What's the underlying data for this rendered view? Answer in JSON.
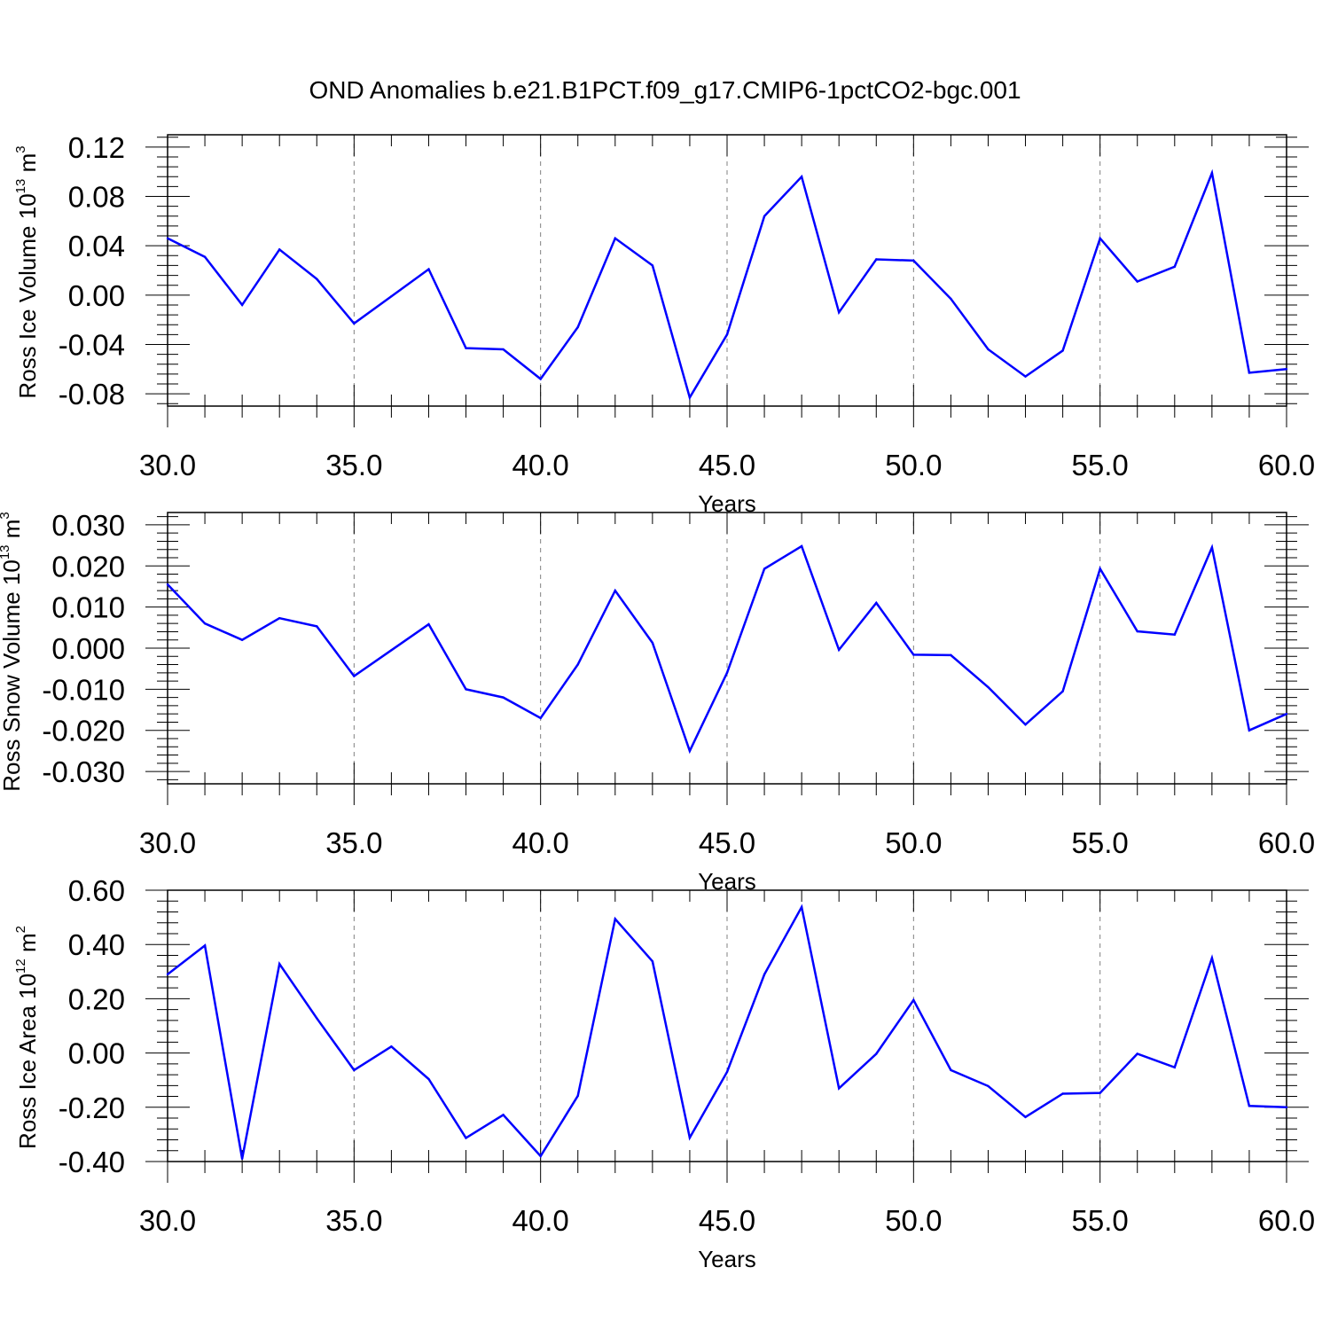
{
  "title": "OND Anomalies b.e21.B1PCT.f09_g17.CMIP6-1pctCO2-bgc.001",
  "colors": {
    "line": "#0000ff",
    "axis": "#000000",
    "grid": "#808080"
  },
  "chart_data": [
    {
      "type": "line",
      "ylabel": {
        "text": "Ross Ice Volume 10",
        "sup": "13",
        "unit": " m",
        "unit_sup": "3"
      },
      "xlabel": "Years",
      "xlim": [
        30,
        60
      ],
      "ylim": [
        -0.09,
        0.13
      ],
      "xticks": [
        "30.0",
        "35.0",
        "40.0",
        "45.0",
        "50.0",
        "55.0",
        "60.0"
      ],
      "yticks": [
        "0.12",
        "0.08",
        "0.04",
        "0.00",
        "-0.04",
        "-0.08"
      ],
      "ytick_values": [
        0.12,
        0.08,
        0.04,
        0.0,
        -0.04,
        -0.08
      ],
      "x": [
        30,
        31,
        32,
        33,
        34,
        35,
        36,
        37,
        38,
        39,
        40,
        41,
        42,
        43,
        44,
        45,
        46,
        47,
        48,
        49,
        50,
        51,
        52,
        53,
        54,
        55,
        56,
        57,
        58,
        59,
        60
      ],
      "series": [
        {
          "values": [
            0.046,
            0.031,
            -0.008,
            0.037,
            0.013,
            -0.023,
            -0.001,
            0.021,
            -0.043,
            -0.044,
            -0.068,
            -0.026,
            0.046,
            0.024,
            -0.083,
            -0.032,
            0.064,
            0.096,
            -0.014,
            0.029,
            0.028,
            -0.003,
            -0.044,
            -0.066,
            -0.045,
            0.046,
            0.011,
            0.023,
            0.099,
            -0.063,
            -0.06
          ]
        }
      ],
      "grid": "dashed vertical at major x ticks"
    },
    {
      "type": "line",
      "ylabel": {
        "text": "Ross Snow Volume 10",
        "sup": "13",
        "unit": " m",
        "unit_sup": "3"
      },
      "xlabel": "Years",
      "xlim": [
        30,
        60
      ],
      "ylim": [
        -0.033,
        0.033
      ],
      "xticks": [
        "30.0",
        "35.0",
        "40.0",
        "45.0",
        "50.0",
        "55.0",
        "60.0"
      ],
      "yticks": [
        "0.030",
        "0.020",
        "0.010",
        "0.000",
        "-0.010",
        "-0.020",
        "-0.030"
      ],
      "ytick_values": [
        0.03,
        0.02,
        0.01,
        0.0,
        -0.01,
        -0.02,
        -0.03
      ],
      "x": [
        30,
        31,
        32,
        33,
        34,
        35,
        36,
        37,
        38,
        39,
        40,
        41,
        42,
        43,
        44,
        45,
        46,
        47,
        48,
        49,
        50,
        51,
        52,
        53,
        54,
        55,
        56,
        57,
        58,
        59,
        60
      ],
      "series": [
        {
          "values": [
            0.0155,
            0.006,
            0.002,
            0.0073,
            0.0053,
            -0.0068,
            -0.0005,
            0.0058,
            -0.01,
            -0.012,
            -0.017,
            -0.004,
            0.014,
            0.0013,
            -0.025,
            -0.006,
            0.0193,
            0.0248,
            -0.0004,
            0.011,
            -0.0016,
            -0.0017,
            -0.0095,
            -0.0186,
            -0.0105,
            0.0193,
            0.0041,
            0.0033,
            0.0245,
            -0.02,
            -0.016
          ]
        }
      ],
      "grid": "dashed vertical at major x ticks"
    },
    {
      "type": "line",
      "ylabel": {
        "text": "Ross Ice Area 10",
        "sup": "12",
        "unit": " m",
        "unit_sup": "2"
      },
      "xlabel": "Years",
      "xlim": [
        30,
        60
      ],
      "ylim": [
        -0.4,
        0.6
      ],
      "xticks": [
        "30.0",
        "35.0",
        "40.0",
        "45.0",
        "50.0",
        "55.0",
        "60.0"
      ],
      "yticks": [
        "0.60",
        "0.40",
        "0.20",
        "0.00",
        "-0.20",
        "-0.40"
      ],
      "ytick_values": [
        0.6,
        0.4,
        0.2,
        0.0,
        -0.2,
        -0.4
      ],
      "x": [
        30,
        31,
        32,
        33,
        34,
        35,
        36,
        37,
        38,
        39,
        40,
        41,
        42,
        43,
        44,
        45,
        46,
        47,
        48,
        49,
        50,
        51,
        52,
        53,
        54,
        55,
        56,
        57,
        58,
        59,
        60
      ],
      "series": [
        {
          "values": [
            0.29,
            0.396,
            -0.39,
            0.328,
            0.128,
            -0.063,
            0.024,
            -0.096,
            -0.313,
            -0.228,
            -0.38,
            -0.158,
            0.494,
            0.338,
            -0.312,
            -0.07,
            0.29,
            0.538,
            -0.13,
            -0.003,
            0.195,
            -0.063,
            -0.122,
            -0.236,
            -0.15,
            -0.147,
            -0.003,
            -0.053,
            0.35,
            -0.195,
            -0.2
          ]
        }
      ],
      "grid": "dashed vertical at major x ticks"
    }
  ]
}
